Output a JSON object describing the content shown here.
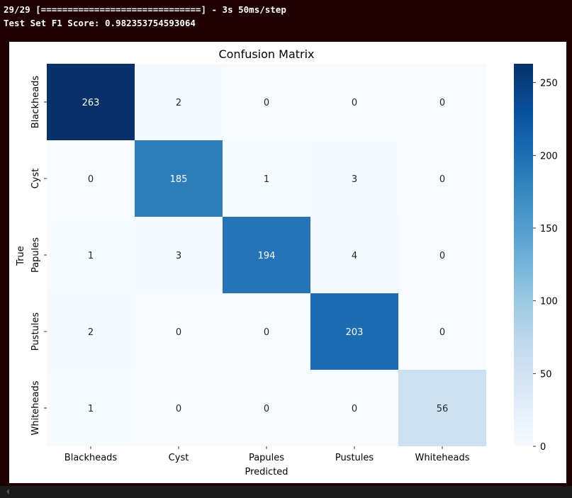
{
  "console": {
    "progress_line": "29/29 [==============================] - 3s 50ms/step",
    "score_line": "Test Set F1 Score: 0.982353754593064"
  },
  "chart_data": {
    "type": "heatmap",
    "title": "Confusion Matrix",
    "xlabel": "Predicted",
    "ylabel": "True",
    "x_categories": [
      "Blackheads",
      "Cyst",
      "Papules",
      "Pustules",
      "Whiteheads"
    ],
    "y_categories": [
      "Blackheads",
      "Cyst",
      "Papules",
      "Pustules",
      "Whiteheads"
    ],
    "values": [
      [
        263,
        2,
        0,
        0,
        0
      ],
      [
        0,
        185,
        1,
        3,
        0
      ],
      [
        1,
        3,
        194,
        4,
        0
      ],
      [
        2,
        0,
        0,
        203,
        0
      ],
      [
        1,
        0,
        0,
        0,
        56
      ]
    ],
    "colormap": "Blues",
    "vmin": 0,
    "vmax": 263,
    "colorbar_ticks": [
      0,
      50,
      100,
      150,
      200,
      250
    ],
    "annotations": true
  }
}
